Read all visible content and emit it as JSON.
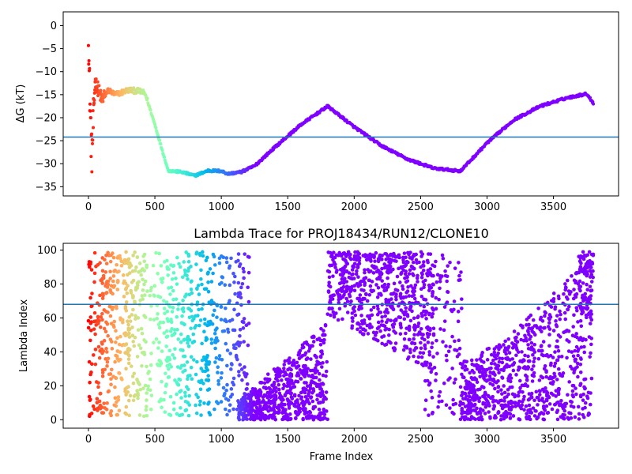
{
  "chart_data": [
    {
      "type": "scatter",
      "title": "",
      "xlabel": "",
      "ylabel": "ΔG (kT)",
      "xlim": [
        -190,
        3990
      ],
      "ylim": [
        -37,
        3
      ],
      "xticks": [
        0,
        500,
        1000,
        1500,
        2000,
        2500,
        3000,
        3500
      ],
      "yticks": [
        0,
        -5,
        -10,
        -15,
        -20,
        -25,
        -30,
        -35
      ],
      "colormap": "rainbow (red at frame 0 → violet at later frames)",
      "hline": {
        "y": -24.2,
        "color": "#1f77b4"
      },
      "curve_keypoints": [
        {
          "x": 0,
          "y": 0
        },
        {
          "x": 5,
          "y": -10
        },
        {
          "x": 15,
          "y": -20
        },
        {
          "x": 25,
          "y": -28.6
        },
        {
          "x": 50,
          "y": -12
        },
        {
          "x": 100,
          "y": -16
        },
        {
          "x": 150,
          "y": -14
        },
        {
          "x": 200,
          "y": -15
        },
        {
          "x": 300,
          "y": -14
        },
        {
          "x": 400,
          "y": -14.3
        },
        {
          "x": 430,
          "y": -15
        },
        {
          "x": 500,
          "y": -21.5
        },
        {
          "x": 600,
          "y": -31.5
        },
        {
          "x": 700,
          "y": -31.8
        },
        {
          "x": 800,
          "y": -32.6
        },
        {
          "x": 900,
          "y": -31.5
        },
        {
          "x": 1000,
          "y": -31.6
        },
        {
          "x": 1050,
          "y": -32.2
        },
        {
          "x": 1150,
          "y": -31.8
        },
        {
          "x": 1250,
          "y": -30.5
        },
        {
          "x": 1400,
          "y": -26.5
        },
        {
          "x": 1600,
          "y": -21.5
        },
        {
          "x": 1800,
          "y": -17.5
        },
        {
          "x": 2000,
          "y": -22.0
        },
        {
          "x": 2200,
          "y": -26.0
        },
        {
          "x": 2400,
          "y": -29.0
        },
        {
          "x": 2600,
          "y": -31.0
        },
        {
          "x": 2800,
          "y": -31.6
        },
        {
          "x": 3000,
          "y": -25.5
        },
        {
          "x": 3200,
          "y": -20.5
        },
        {
          "x": 3400,
          "y": -17.5
        },
        {
          "x": 3600,
          "y": -15.7
        },
        {
          "x": 3750,
          "y": -14.8
        },
        {
          "x": 3800,
          "y": -16.8
        }
      ]
    },
    {
      "type": "scatter",
      "title": "Lambda Trace for PROJ18434/RUN12/CLONE10",
      "xlabel": "Frame Index",
      "ylabel": "Lambda Index",
      "xlim": [
        -190,
        3990
      ],
      "ylim": [
        -5,
        104
      ],
      "xticks": [
        0,
        500,
        1000,
        1500,
        2000,
        2500,
        3000,
        3500
      ],
      "yticks": [
        0,
        20,
        40,
        60,
        80,
        100
      ],
      "colormap": "rainbow (red at frame 0 → violet at later frames)",
      "hline": {
        "y": 68,
        "color": "#1f77b4"
      },
      "density_regions": [
        {
          "x": [
            0,
            1200
          ],
          "y": [
            2,
            99
          ],
          "note": "broad uniform scatter, colored red→blue"
        },
        {
          "x": [
            1130,
            1800
          ],
          "y": [
            0,
            55
          ],
          "note": "low band, upper edge rising with frame"
        },
        {
          "x": [
            1800,
            2600
          ],
          "y": [
            40,
            99
          ],
          "note": "high band, lower edge falling with frame"
        },
        {
          "x": [
            2550,
            2800
          ],
          "y": [
            2,
            99
          ],
          "note": "transition spread"
        },
        {
          "x": [
            2800,
            3800
          ],
          "y": [
            0,
            99
          ],
          "note": "low band rising to high values near end"
        }
      ]
    }
  ]
}
